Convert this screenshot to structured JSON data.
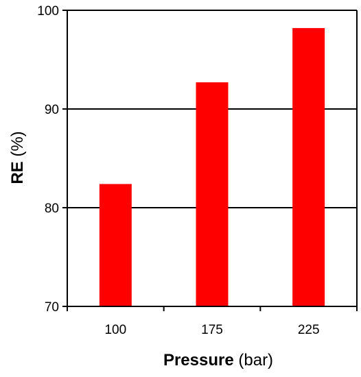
{
  "chart_data": {
    "type": "bar",
    "categories": [
      "100",
      "175",
      "225"
    ],
    "values": [
      82.4,
      92.7,
      98.2
    ],
    "xlabel_bold": "Pressure",
    "xlabel_unit": "(bar)",
    "ylabel_bold": "RE",
    "ylabel_unit": "(%)",
    "ylim": [
      70,
      100
    ],
    "yticks": [
      "70",
      "80",
      "90",
      "100"
    ],
    "bar_color": "#ff0000",
    "grid": true
  }
}
